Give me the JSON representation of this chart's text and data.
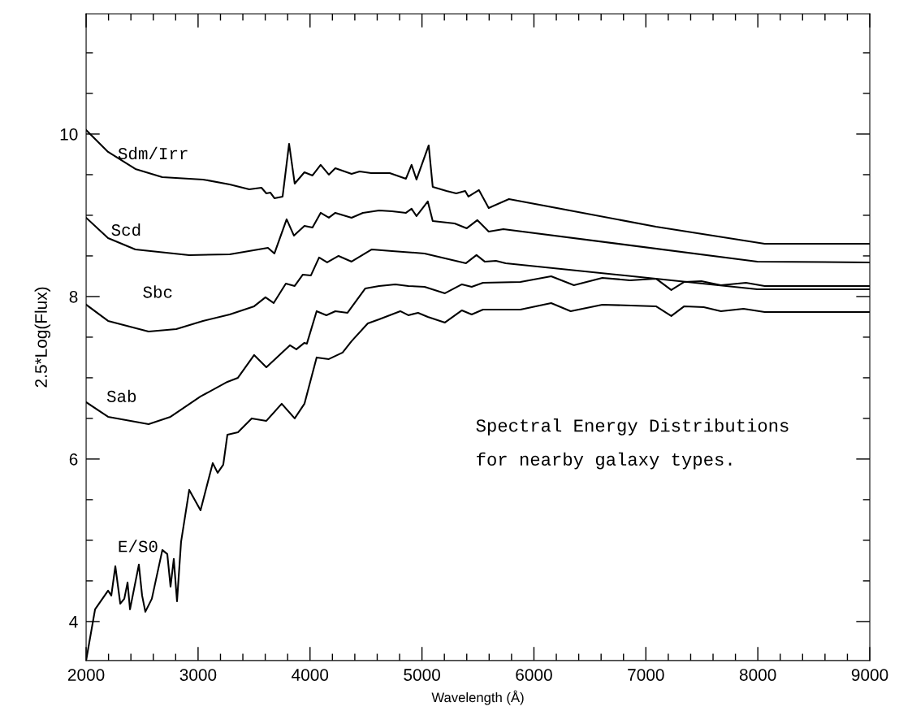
{
  "chart_data": {
    "type": "line",
    "xlabel": "Wavelength (Å)",
    "ylabel": "2.5*Log(Flux)",
    "annotations": [
      "Spectral Energy Distributions\nfor nearby galaxy types."
    ],
    "xlim": [
      2000,
      9000
    ],
    "ylim": [
      3.52,
      11.48
    ],
    "xticks": [
      2000,
      {
        "value": 2200,
        "label": null
      },
      {
        "value": 2400,
        "label": null
      },
      {
        "value": 2600,
        "label": null
      },
      {
        "value": 2800,
        "label": null
      },
      3000,
      {
        "value": 3200,
        "label": null
      },
      {
        "value": 3400,
        "label": null
      },
      {
        "value": 3600,
        "label": null
      },
      {
        "value": 3800,
        "label": null
      },
      4000,
      {
        "value": 4200,
        "label": null
      },
      {
        "value": 4400,
        "label": null
      },
      {
        "value": 4600,
        "label": null
      },
      {
        "value": 4800,
        "label": null
      },
      5000,
      {
        "value": 5200,
        "label": null
      },
      {
        "value": 5400,
        "label": null
      },
      {
        "value": 5600,
        "label": null
      },
      {
        "value": 5800,
        "label": null
      },
      6000,
      {
        "value": 6200,
        "label": null
      },
      {
        "value": 6400,
        "label": null
      },
      {
        "value": 6600,
        "label": null
      },
      {
        "value": 6800,
        "label": null
      },
      7000,
      {
        "value": 7200,
        "label": null
      },
      {
        "value": 7400,
        "label": null
      },
      {
        "value": 7600,
        "label": null
      },
      {
        "value": 7800,
        "label": null
      },
      8000,
      {
        "value": 8200,
        "label": null
      },
      {
        "value": 8400,
        "label": null
      },
      {
        "value": 8600,
        "label": null
      },
      {
        "value": 8800,
        "label": null
      },
      9000
    ],
    "yticks": [
      4,
      {
        "value": 4.5,
        "label": null
      },
      {
        "value": 5,
        "label": null
      },
      {
        "value": 5.5,
        "label": null
      },
      6,
      {
        "value": 6.5,
        "label": null
      },
      {
        "value": 7,
        "label": null
      },
      {
        "value": 7.5,
        "label": null
      },
      8,
      {
        "value": 8.5,
        "label": null
      },
      {
        "value": 9,
        "label": null
      },
      {
        "value": 9.5,
        "label": null
      },
      10,
      {
        "value": 10.5,
        "label": null
      },
      {
        "value": 11,
        "label": null
      }
    ],
    "grid": false,
    "legend": false,
    "marker": "none",
    "line_style": "solid",
    "series": [
      {
        "name": "Sdm/Irr",
        "color": "#000000",
        "x": [
          2000,
          2196,
          2440,
          2680,
          3044,
          3283,
          3457,
          3566,
          3610,
          3645,
          3682,
          3755,
          3813,
          3863,
          3950,
          4022,
          4095,
          4168,
          4226,
          4371,
          4443,
          4545,
          4617,
          4712,
          4857,
          4907,
          4951,
          5060,
          5096,
          5219,
          5306,
          5386,
          5415,
          5509,
          5596,
          5777,
          7090,
          8061,
          9000
        ],
        "values": [
          10.05,
          9.78,
          9.57,
          9.47,
          9.44,
          9.38,
          9.32,
          9.34,
          9.27,
          9.28,
          9.21,
          9.23,
          9.88,
          9.39,
          9.53,
          9.49,
          9.62,
          9.5,
          9.58,
          9.51,
          9.54,
          9.52,
          9.52,
          9.52,
          9.45,
          9.62,
          9.44,
          9.86,
          9.35,
          9.3,
          9.27,
          9.3,
          9.23,
          9.31,
          9.09,
          9.2,
          8.86,
          8.65,
          8.65
        ]
      },
      {
        "name": "Scd",
        "color": "#000000",
        "x": [
          2000,
          2196,
          2440,
          2920,
          3283,
          3624,
          3682,
          3791,
          3856,
          3950,
          4022,
          4095,
          4168,
          4226,
          4371,
          4472,
          4617,
          4733,
          4857,
          4907,
          4951,
          5052,
          5096,
          5292,
          5400,
          5495,
          5596,
          5727,
          7996,
          9000
        ],
        "values": [
          8.97,
          8.72,
          8.58,
          8.51,
          8.52,
          8.6,
          8.53,
          8.95,
          8.75,
          8.87,
          8.85,
          9.03,
          8.97,
          9.03,
          8.97,
          9.03,
          9.06,
          9.05,
          9.03,
          9.08,
          8.99,
          9.17,
          8.93,
          8.9,
          8.84,
          8.94,
          8.8,
          8.83,
          8.43,
          8.42
        ]
      },
      {
        "name": "Sbc",
        "color": "#000000",
        "x": [
          2000,
          2196,
          2558,
          2805,
          3044,
          3283,
          3501,
          3602,
          3675,
          3784,
          3863,
          3936,
          4008,
          4081,
          4153,
          4255,
          4371,
          4552,
          4733,
          5023,
          5393,
          5487,
          5560,
          5661,
          5748,
          7996,
          9000
        ],
        "values": [
          7.9,
          7.7,
          7.57,
          7.6,
          7.7,
          7.78,
          7.88,
          7.99,
          7.92,
          8.16,
          8.13,
          8.27,
          8.26,
          8.48,
          8.42,
          8.5,
          8.43,
          8.58,
          8.56,
          8.53,
          8.41,
          8.51,
          8.43,
          8.44,
          8.41,
          8.09,
          8.09
        ]
      },
      {
        "name": "Sab",
        "color": "#000000",
        "x": [
          2000,
          2196,
          2558,
          2754,
          3022,
          3262,
          3356,
          3501,
          3610,
          3820,
          3878,
          3950,
          3972,
          4059,
          4146,
          4226,
          4335,
          4494,
          4617,
          4762,
          4878,
          5023,
          5205,
          5357,
          5444,
          5545,
          5879,
          6154,
          6357,
          6611,
          6857,
          7090,
          7227,
          7343,
          7496,
          7670,
          7894,
          8061,
          9000
        ],
        "values": [
          6.7,
          6.52,
          6.43,
          6.52,
          6.77,
          6.95,
          7.0,
          7.28,
          7.13,
          7.4,
          7.35,
          7.43,
          7.42,
          7.82,
          7.77,
          7.82,
          7.8,
          8.1,
          8.13,
          8.15,
          8.13,
          8.12,
          8.04,
          8.15,
          8.12,
          8.17,
          8.18,
          8.25,
          8.14,
          8.23,
          8.2,
          8.22,
          8.08,
          8.18,
          8.19,
          8.14,
          8.17,
          8.13,
          8.13
        ]
      },
      {
        "name": "E/S0",
        "color": "#000000",
        "x": [
          2000,
          2080,
          2196,
          2225,
          2261,
          2305,
          2341,
          2370,
          2392,
          2471,
          2500,
          2529,
          2587,
          2681,
          2725,
          2754,
          2783,
          2812,
          2848,
          2921,
          3022,
          3131,
          3175,
          3225,
          3262,
          3356,
          3479,
          3610,
          3747,
          3863,
          3950,
          4059,
          4168,
          4291,
          4371,
          4516,
          4617,
          4806,
          4878,
          4965,
          5052,
          5205,
          5357,
          5444,
          5545,
          5879,
          6154,
          6328,
          6611,
          7090,
          7227,
          7343,
          7517,
          7670,
          7872,
          8061,
          9000
        ],
        "values": [
          3.52,
          4.15,
          4.38,
          4.32,
          4.68,
          4.22,
          4.28,
          4.48,
          4.15,
          4.7,
          4.32,
          4.12,
          4.28,
          4.88,
          4.83,
          4.43,
          4.77,
          4.25,
          4.98,
          5.62,
          5.37,
          5.95,
          5.83,
          5.93,
          6.3,
          6.33,
          6.5,
          6.47,
          6.68,
          6.5,
          6.68,
          7.25,
          7.23,
          7.31,
          7.45,
          7.67,
          7.72,
          7.82,
          7.77,
          7.8,
          7.75,
          7.68,
          7.83,
          7.78,
          7.84,
          7.84,
          7.92,
          7.82,
          7.9,
          7.88,
          7.76,
          7.88,
          7.87,
          7.82,
          7.85,
          7.81,
          7.81
        ]
      }
    ]
  }
}
